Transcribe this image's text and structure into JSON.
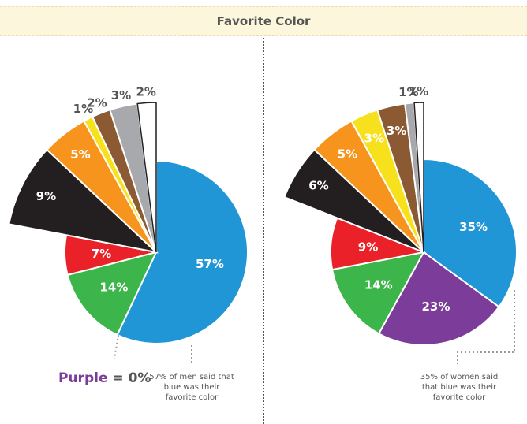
{
  "title": "Favorite Color",
  "chart_data": [
    {
      "type": "pie",
      "title": "",
      "slices": [
        {
          "label": "57%",
          "value": 57,
          "color": "#2196d6",
          "explode": false
        },
        {
          "label": "14%",
          "value": 14,
          "color": "#3cb54a",
          "explode": false
        },
        {
          "label": "7%",
          "value": 7,
          "color": "#ea2128",
          "explode": false
        },
        {
          "label": "9%",
          "value": 9,
          "color": "#231f20",
          "explode": true
        },
        {
          "label": "5%",
          "value": 5,
          "color": "#f7941d",
          "explode": true
        },
        {
          "label": "1%",
          "value": 1,
          "color": "#f7e11d",
          "explode": true
        },
        {
          "label": "2%",
          "value": 2,
          "color": "#8b5a32",
          "explode": true
        },
        {
          "label": "3%",
          "value": 3,
          "color": "#a7a9ac",
          "explode": true
        },
        {
          "label": "2%",
          "value": 2,
          "color": "#ffffff",
          "explode": true
        }
      ],
      "annotation": "57% of men said that blue was their favorite color",
      "note": {
        "purple_label": "Purple",
        "purple_value": "= 0%"
      }
    },
    {
      "type": "pie",
      "title": "",
      "slices": [
        {
          "label": "35%",
          "value": 35,
          "color": "#2196d6",
          "explode": false
        },
        {
          "label": "23%",
          "value": 23,
          "color": "#7b3d99",
          "explode": false
        },
        {
          "label": "14%",
          "value": 14,
          "color": "#3cb54a",
          "explode": false
        },
        {
          "label": "9%",
          "value": 9,
          "color": "#ea2128",
          "explode": false
        },
        {
          "label": "6%",
          "value": 6,
          "color": "#231f20",
          "explode": true
        },
        {
          "label": "5%",
          "value": 5,
          "color": "#f7941d",
          "explode": true
        },
        {
          "label": "3%",
          "value": 3,
          "color": "#f7e11d",
          "explode": true
        },
        {
          "label": "3%",
          "value": 3,
          "color": "#8b5a32",
          "explode": true
        },
        {
          "label": "1%",
          "value": 1,
          "color": "#a7a9ac",
          "explode": true
        },
        {
          "label": "1%",
          "value": 1,
          "color": "#ffffff",
          "explode": true
        }
      ],
      "annotation": "35% of women said that blue was their favorite color"
    }
  ]
}
